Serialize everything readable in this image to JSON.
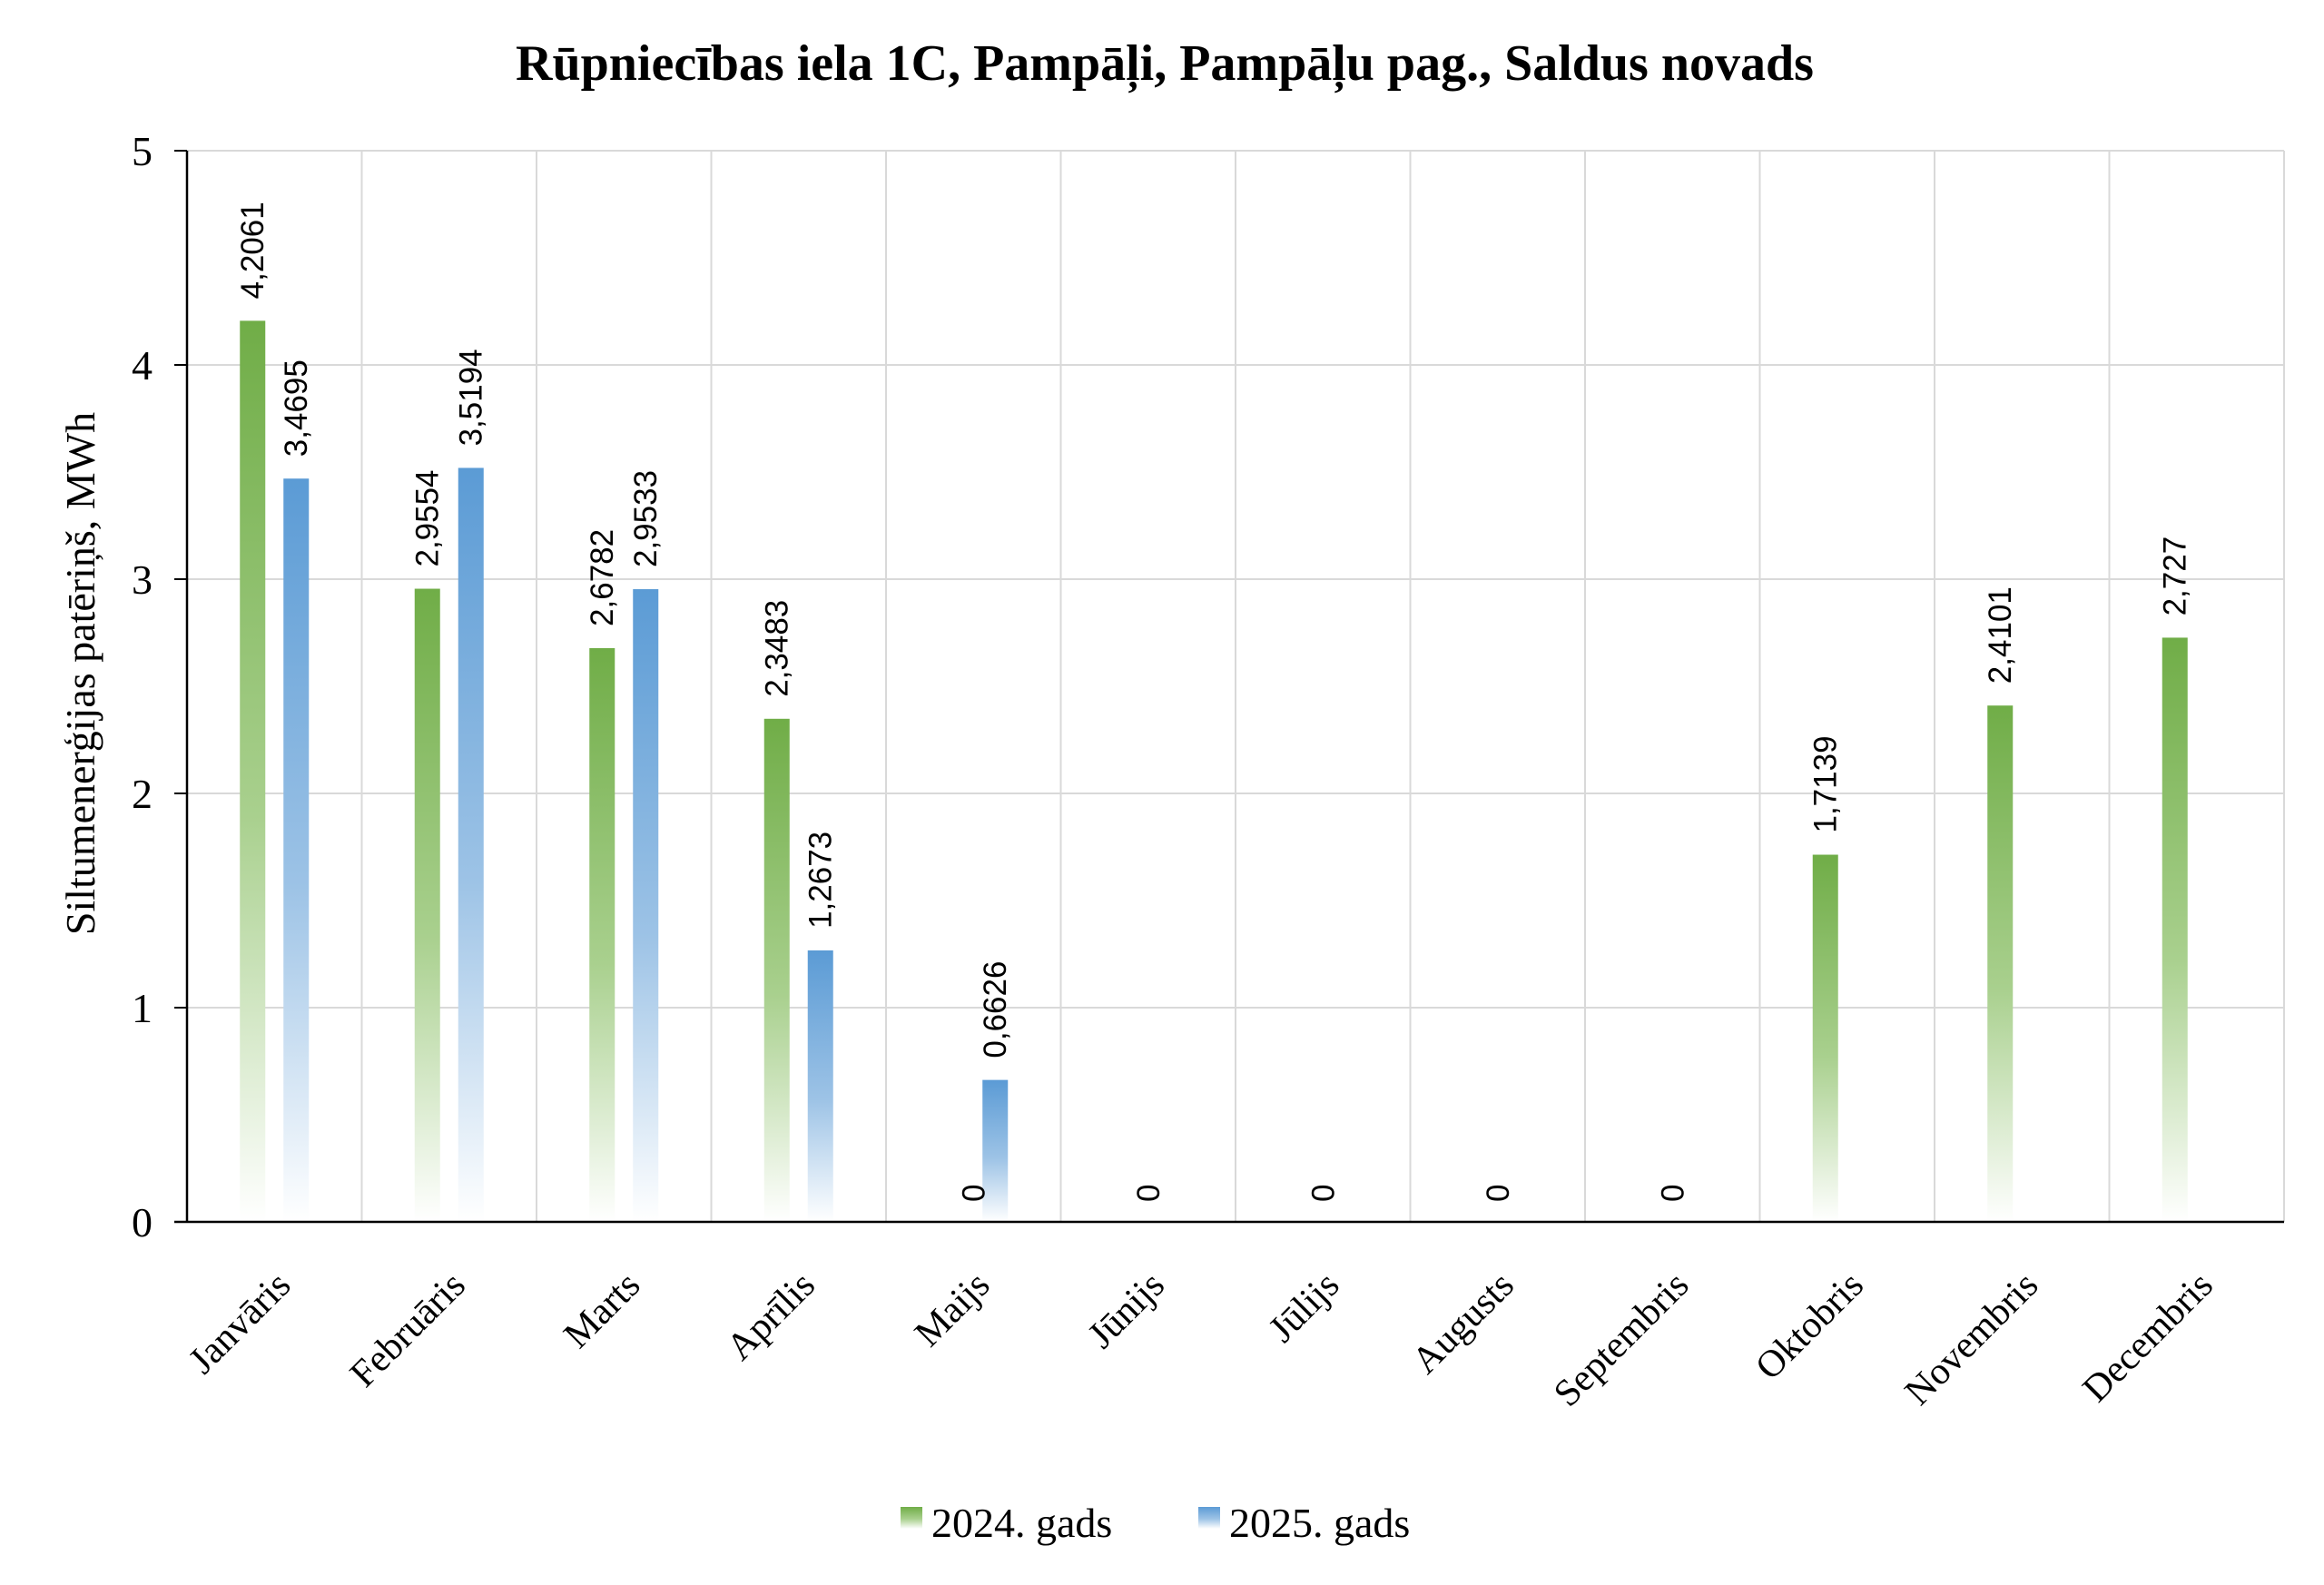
{
  "chart_data": {
    "type": "bar",
    "title": "Rūpniecības iela 1C, Pampāļi, Pampāļu pag., Saldus novads",
    "xlabel": "",
    "ylabel": "Siltumenerģijas patēriņš, MWh",
    "ylim": [
      0,
      5
    ],
    "yticks": [
      "0",
      "1",
      "2",
      "3",
      "4",
      "5"
    ],
    "grid": true,
    "legend_position": "bottom",
    "categories": [
      "Janvāris",
      "Februāris",
      "Marts",
      "Aprīlis",
      "Maijs",
      "Jūnijs",
      "Jūlijs",
      "Augusts",
      "Septembris",
      "Oktobris",
      "Novembris",
      "Decembris"
    ],
    "series": [
      {
        "name": "2024. gads",
        "color": "#70ad47",
        "values": [
          4.2061,
          2.9554,
          2.6782,
          2.3483,
          0,
          0,
          0,
          0,
          0,
          1.7139,
          2.4101,
          2.727
        ],
        "labels": [
          "4,2061",
          "2,9554",
          "2,6782",
          "2,3483",
          "0",
          "0",
          "0",
          "0",
          "0",
          "1,7139",
          "2,4101",
          "2,727"
        ]
      },
      {
        "name": "2025. gads",
        "color": "#5b9bd5",
        "values": [
          3.4695,
          3.5194,
          2.9533,
          1.2673,
          0.6626,
          null,
          null,
          null,
          null,
          null,
          null,
          null
        ],
        "labels": [
          "3,4695",
          "3,5194",
          "2,9533",
          "1,2673",
          "0,6626",
          "",
          "",
          "",
          "",
          "",
          "",
          ""
        ]
      }
    ]
  }
}
